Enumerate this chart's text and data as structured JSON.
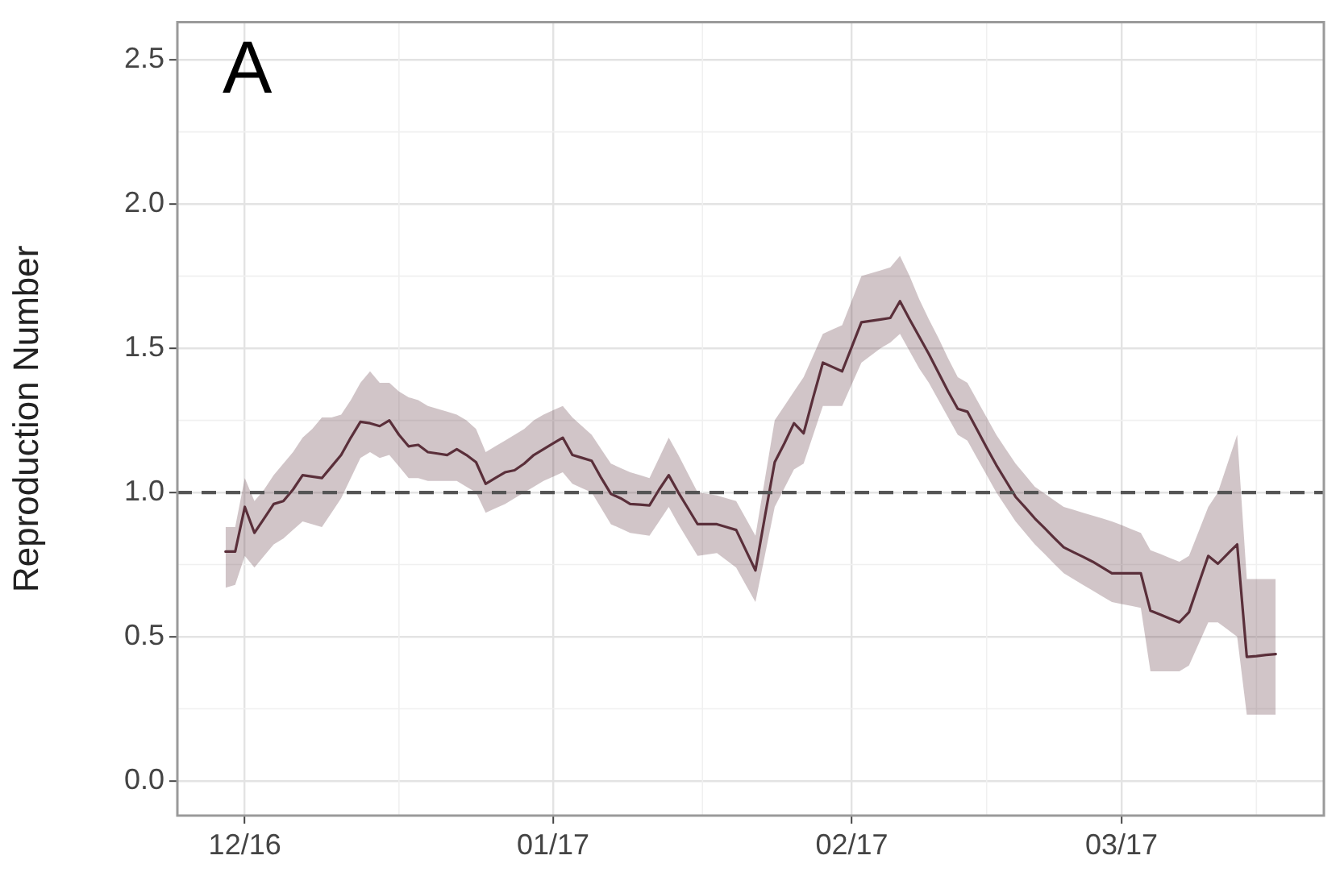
{
  "chart_data": {
    "type": "line",
    "ylabel": "Reproduction Number",
    "annotations": [
      "A"
    ],
    "categories": [
      null,
      null,
      null,
      null,
      null,
      null,
      null,
      "12/16",
      null,
      null,
      null,
      null,
      null,
      null,
      null,
      null,
      null,
      null,
      null,
      null,
      null,
      null,
      null,
      null,
      null,
      null,
      null,
      null,
      null,
      null,
      null,
      null,
      null,
      null,
      null,
      null,
      null,
      null,
      null,
      "01/17",
      null,
      null,
      null,
      null,
      null,
      null,
      null,
      null,
      null,
      null,
      null,
      null,
      null,
      null,
      null,
      null,
      null,
      null,
      null,
      null,
      null,
      null,
      null,
      null,
      null,
      null,
      null,
      null,
      null,
      null,
      "02/17",
      null,
      null,
      null,
      null,
      null,
      null,
      null,
      null,
      null,
      null,
      null,
      null,
      null,
      null,
      null,
      null,
      null,
      null,
      null,
      null,
      null,
      null,
      null,
      null,
      null,
      null,
      null,
      "03/17",
      null,
      null,
      null,
      null,
      null,
      null,
      null,
      null,
      null,
      null,
      null,
      null,
      null,
      null,
      null,
      null,
      null,
      null,
      null,
      null,
      null
    ],
    "ylim": [
      -0.12,
      2.63
    ],
    "yticks": [
      {
        "value": 0,
        "label": "0.0"
      },
      {
        "value": 0.5,
        "label": "0.5"
      },
      {
        "value": 1,
        "label": "1.0"
      },
      {
        "value": 1.5,
        "label": "1.5"
      },
      {
        "value": 2,
        "label": "2.0"
      },
      {
        "value": 2.5,
        "label": "2.5"
      }
    ],
    "grid": true,
    "marker": "none",
    "line_style": "solid",
    "ref_lines": [
      {
        "axis": "y",
        "value": 1,
        "color": "#555555",
        "line_style": "dashed"
      }
    ],
    "series": [
      {
        "color": "#5a2f3a",
        "values": [
          null,
          null,
          null,
          null,
          null,
          0.795,
          0.795,
          0.95,
          0.86,
          0.91,
          0.96,
          0.97,
          1.01,
          1.06,
          1.055,
          1.05,
          1.09,
          1.13,
          1.19,
          1.245,
          1.24,
          1.23,
          1.25,
          1.2,
          1.16,
          1.165,
          1.14,
          1.135,
          1.13,
          1.15,
          1.13,
          1.105,
          1.03,
          1.05,
          1.07,
          1.077,
          1.1,
          1.13,
          1.15,
          1.17,
          1.19,
          1.13,
          1.12,
          1.11,
          1.05,
          0.995,
          0.98,
          0.96,
          0.958,
          0.955,
          1.01,
          1.06,
          1.0,
          0.945,
          0.89,
          0.89,
          0.89,
          0.88,
          0.87,
          0.8,
          0.73,
          0.92,
          1.105,
          1.17,
          1.24,
          1.205,
          1.33,
          1.45,
          1.435,
          1.42,
          1.505,
          1.59,
          1.595,
          1.6,
          1.605,
          1.663,
          1.6,
          1.54,
          1.48,
          1.415,
          1.35,
          1.29,
          1.28,
          1.218,
          1.155,
          1.095,
          1.04,
          0.985,
          0.948,
          0.91,
          0.877,
          0.843,
          0.81,
          0.793,
          0.777,
          0.76,
          0.74,
          0.72,
          0.72,
          0.72,
          0.72,
          0.59,
          0.577,
          0.563,
          0.55,
          0.585,
          0.683,
          0.78,
          0.753,
          0.787,
          0.82,
          0.43,
          0.433,
          0.437,
          0.44,
          null,
          null,
          null,
          null,
          null
        ],
        "lower": [
          null,
          null,
          null,
          null,
          null,
          0.67,
          0.68,
          0.78,
          0.74,
          0.78,
          0.82,
          0.84,
          0.87,
          0.9,
          0.89,
          0.88,
          0.93,
          0.98,
          1.05,
          1.12,
          1.14,
          1.12,
          1.13,
          1.09,
          1.05,
          1.05,
          1.04,
          1.04,
          1.04,
          1.04,
          1.02,
          1.0,
          0.93,
          0.945,
          0.96,
          0.98,
          1.0,
          1.02,
          1.04,
          1.055,
          1.07,
          1.03,
          1.015,
          1.0,
          0.945,
          0.89,
          0.875,
          0.86,
          0.855,
          0.85,
          0.9,
          0.95,
          0.89,
          0.835,
          0.78,
          0.785,
          0.79,
          0.765,
          0.74,
          0.68,
          0.62,
          0.785,
          0.95,
          1.015,
          1.08,
          1.1,
          1.2,
          1.3,
          1.3,
          1.3,
          1.375,
          1.45,
          1.475,
          1.5,
          1.52,
          1.55,
          1.49,
          1.43,
          1.38,
          1.32,
          1.26,
          1.2,
          1.18,
          1.12,
          1.06,
          1.0,
          0.95,
          0.9,
          0.86,
          0.82,
          0.787,
          0.753,
          0.72,
          0.7,
          0.68,
          0.66,
          0.64,
          0.62,
          0.613,
          0.607,
          0.6,
          0.38,
          0.38,
          0.38,
          0.38,
          0.4,
          0.475,
          0.55,
          0.55,
          0.525,
          0.5,
          0.23,
          0.23,
          0.23,
          0.23,
          null,
          null,
          null,
          null,
          null
        ],
        "upper": [
          null,
          null,
          null,
          null,
          null,
          0.88,
          0.88,
          1.05,
          0.97,
          1.01,
          1.06,
          1.1,
          1.14,
          1.19,
          1.22,
          1.26,
          1.26,
          1.27,
          1.32,
          1.38,
          1.42,
          1.38,
          1.38,
          1.35,
          1.33,
          1.32,
          1.3,
          1.29,
          1.28,
          1.27,
          1.25,
          1.22,
          1.14,
          1.16,
          1.18,
          1.2,
          1.22,
          1.25,
          1.27,
          1.285,
          1.3,
          1.26,
          1.23,
          1.2,
          1.15,
          1.1,
          1.085,
          1.07,
          1.06,
          1.05,
          1.12,
          1.19,
          1.13,
          1.065,
          1.0,
          0.995,
          0.99,
          0.98,
          0.97,
          0.91,
          0.85,
          1.05,
          1.25,
          1.3,
          1.35,
          1.4,
          1.475,
          1.55,
          1.565,
          1.58,
          1.665,
          1.75,
          1.76,
          1.77,
          1.78,
          1.82,
          1.75,
          1.67,
          1.6,
          1.535,
          1.465,
          1.4,
          1.38,
          1.32,
          1.26,
          1.2,
          1.15,
          1.1,
          1.06,
          1.02,
          0.997,
          0.973,
          0.95,
          0.94,
          0.93,
          0.92,
          0.91,
          0.9,
          0.887,
          0.873,
          0.86,
          0.8,
          0.787,
          0.773,
          0.76,
          0.78,
          0.865,
          0.95,
          1.0,
          1.1,
          1.2,
          0.7,
          0.7,
          0.7,
          0.7,
          null,
          null,
          null,
          null,
          null
        ]
      }
    ]
  }
}
